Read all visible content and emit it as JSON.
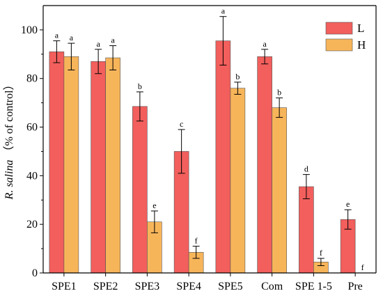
{
  "chart_data": {
    "type": "bar",
    "categories": [
      "SPE1",
      "SPE2",
      "SPE3",
      "SPE4",
      "SPE5",
      "Com",
      "SPE 1-5",
      "Pre"
    ],
    "series": [
      {
        "name": "L",
        "color": "#f25f5c",
        "values": [
          91,
          87,
          68.5,
          50,
          95.5,
          89,
          35.5,
          22
        ],
        "errors": [
          4.5,
          5,
          6,
          9,
          10,
          3,
          5,
          4
        ],
        "labels": [
          "a",
          "a",
          "b",
          "c",
          "a",
          "a",
          "d",
          "e"
        ]
      },
      {
        "name": "H",
        "color": "#f7b55a",
        "values": [
          89,
          88.5,
          21,
          8.5,
          76,
          68,
          4.5,
          0
        ],
        "errors": [
          5.5,
          5,
          4.5,
          2.5,
          2.5,
          4,
          1.5,
          0
        ],
        "labels": [
          "a",
          "a",
          "e",
          "f",
          "b",
          "b",
          "f",
          "f"
        ]
      }
    ],
    "ylabel_italic": "R. salina",
    "ylabel_rest": "（% of  control）",
    "ylim": [
      0,
      110
    ],
    "yticks": [
      0,
      20,
      40,
      60,
      80,
      100
    ],
    "grid": false,
    "legend": "top-right"
  }
}
